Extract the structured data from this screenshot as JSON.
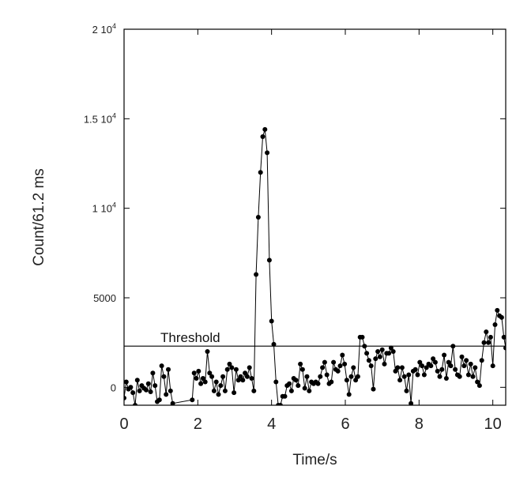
{
  "chart_data": {
    "type": "line",
    "title": "",
    "xlabel": "Time/s",
    "ylabel": "Count/61.2 ms",
    "xlim": [
      0,
      10.35
    ],
    "ylim": [
      -1000,
      20000
    ],
    "x_ticks": [
      {
        "value": 0,
        "label": "0"
      },
      {
        "value": 2,
        "label": "2"
      },
      {
        "value": 4,
        "label": "4"
      },
      {
        "value": 6,
        "label": "6"
      },
      {
        "value": 8,
        "label": "8"
      },
      {
        "value": 10,
        "label": "10"
      }
    ],
    "y_ticks": [
      {
        "value": 0,
        "mantissa": "0",
        "exponent": ""
      },
      {
        "value": 5000,
        "mantissa": "5000",
        "exponent": ""
      },
      {
        "value": 10000,
        "mantissa": "1 10",
        "exponent": "4"
      },
      {
        "value": 15000,
        "mantissa": "1.5 10",
        "exponent": "4"
      },
      {
        "value": 20000,
        "mantissa": "2 10",
        "exponent": "4"
      }
    ],
    "threshold": {
      "value": 2300,
      "label": "Threshold"
    },
    "grid": false,
    "legend": "none",
    "series": [
      {
        "color": "#000000",
        "marker": "circle",
        "points": [
          [
            0.0,
            -600
          ],
          [
            0.06,
            300
          ],
          [
            0.12,
            -100
          ],
          [
            0.18,
            0
          ],
          [
            0.24,
            -300
          ],
          [
            0.3,
            -1000
          ],
          [
            0.36,
            400
          ],
          [
            0.42,
            -200
          ],
          [
            0.48,
            100
          ],
          [
            0.54,
            -50
          ],
          [
            0.6,
            -150
          ],
          [
            0.66,
            200
          ],
          [
            0.72,
            -250
          ],
          [
            0.78,
            800
          ],
          [
            0.84,
            100
          ],
          [
            0.9,
            -800
          ],
          [
            0.96,
            -700
          ],
          [
            1.02,
            1200
          ],
          [
            1.08,
            600
          ],
          [
            1.14,
            -400
          ],
          [
            1.2,
            1000
          ],
          [
            1.26,
            -200
          ],
          [
            1.32,
            -900
          ],
          [
            1.85,
            -700
          ],
          [
            1.9,
            800
          ],
          [
            1.96,
            500
          ],
          [
            2.02,
            900
          ],
          [
            2.08,
            200
          ],
          [
            2.14,
            500
          ],
          [
            2.2,
            300
          ],
          [
            2.26,
            2000
          ],
          [
            2.32,
            800
          ],
          [
            2.38,
            600
          ],
          [
            2.44,
            -200
          ],
          [
            2.5,
            300
          ],
          [
            2.56,
            -400
          ],
          [
            2.62,
            100
          ],
          [
            2.68,
            600
          ],
          [
            2.74,
            -200
          ],
          [
            2.8,
            1000
          ],
          [
            2.86,
            1300
          ],
          [
            2.92,
            1100
          ],
          [
            2.98,
            -300
          ],
          [
            3.04,
            1000
          ],
          [
            3.1,
            400
          ],
          [
            3.16,
            600
          ],
          [
            3.22,
            400
          ],
          [
            3.28,
            800
          ],
          [
            3.34,
            600
          ],
          [
            3.4,
            1100
          ],
          [
            3.46,
            500
          ],
          [
            3.52,
            -200
          ],
          [
            3.58,
            6300
          ],
          [
            3.64,
            9500
          ],
          [
            3.7,
            12000
          ],
          [
            3.76,
            14000
          ],
          [
            3.82,
            14400
          ],
          [
            3.88,
            13100
          ],
          [
            3.94,
            7100
          ],
          [
            4.0,
            3700
          ],
          [
            4.06,
            2400
          ],
          [
            4.12,
            300
          ],
          [
            4.18,
            -1000
          ],
          [
            4.24,
            -1000
          ],
          [
            4.3,
            -500
          ],
          [
            4.36,
            -500
          ],
          [
            4.42,
            100
          ],
          [
            4.48,
            200
          ],
          [
            4.54,
            -200
          ],
          [
            4.6,
            500
          ],
          [
            4.66,
            400
          ],
          [
            4.72,
            100
          ],
          [
            4.78,
            1300
          ],
          [
            4.84,
            1000
          ],
          [
            4.9,
            -50
          ],
          [
            4.96,
            600
          ],
          [
            5.02,
            -200
          ],
          [
            5.08,
            300
          ],
          [
            5.14,
            200
          ],
          [
            5.2,
            300
          ],
          [
            5.26,
            200
          ],
          [
            5.32,
            600
          ],
          [
            5.38,
            1100
          ],
          [
            5.44,
            1400
          ],
          [
            5.5,
            700
          ],
          [
            5.56,
            200
          ],
          [
            5.62,
            300
          ],
          [
            5.68,
            1400
          ],
          [
            5.74,
            1000
          ],
          [
            5.8,
            900
          ],
          [
            5.86,
            1200
          ],
          [
            5.92,
            1800
          ],
          [
            5.98,
            1300
          ],
          [
            6.04,
            400
          ],
          [
            6.1,
            -400
          ],
          [
            6.16,
            600
          ],
          [
            6.22,
            1100
          ],
          [
            6.28,
            400
          ],
          [
            6.34,
            600
          ],
          [
            6.4,
            2800
          ],
          [
            6.46,
            2800
          ],
          [
            6.52,
            2300
          ],
          [
            6.58,
            1900
          ],
          [
            6.64,
            1500
          ],
          [
            6.7,
            1200
          ],
          [
            6.76,
            -100
          ],
          [
            6.82,
            1600
          ],
          [
            6.88,
            2000
          ],
          [
            6.94,
            1700
          ],
          [
            7.0,
            2100
          ],
          [
            7.06,
            1300
          ],
          [
            7.12,
            1900
          ],
          [
            7.18,
            1900
          ],
          [
            7.24,
            2200
          ],
          [
            7.3,
            2000
          ],
          [
            7.36,
            900
          ],
          [
            7.42,
            1100
          ],
          [
            7.48,
            400
          ],
          [
            7.54,
            1100
          ],
          [
            7.6,
            600
          ],
          [
            7.66,
            -200
          ],
          [
            7.72,
            700
          ],
          [
            7.78,
            -900
          ],
          [
            7.84,
            900
          ],
          [
            7.9,
            1000
          ],
          [
            7.96,
            700
          ],
          [
            8.02,
            1400
          ],
          [
            8.08,
            1200
          ],
          [
            8.14,
            700
          ],
          [
            8.2,
            1100
          ],
          [
            8.26,
            1300
          ],
          [
            8.32,
            1200
          ],
          [
            8.38,
            1600
          ],
          [
            8.44,
            1400
          ],
          [
            8.5,
            900
          ],
          [
            8.56,
            600
          ],
          [
            8.62,
            1000
          ],
          [
            8.68,
            1800
          ],
          [
            8.74,
            500
          ],
          [
            8.8,
            1400
          ],
          [
            8.86,
            1200
          ],
          [
            8.92,
            2300
          ],
          [
            8.98,
            1000
          ],
          [
            9.04,
            700
          ],
          [
            9.1,
            600
          ],
          [
            9.16,
            1700
          ],
          [
            9.22,
            1200
          ],
          [
            9.28,
            1500
          ],
          [
            9.34,
            700
          ],
          [
            9.4,
            1300
          ],
          [
            9.46,
            600
          ],
          [
            9.52,
            1100
          ],
          [
            9.58,
            300
          ],
          [
            9.64,
            100
          ],
          [
            9.7,
            1500
          ],
          [
            9.76,
            2500
          ],
          [
            9.82,
            3100
          ],
          [
            9.88,
            2500
          ],
          [
            9.94,
            2800
          ],
          [
            10.0,
            1200
          ],
          [
            10.06,
            3500
          ],
          [
            10.12,
            4300
          ],
          [
            10.18,
            4000
          ],
          [
            10.24,
            3900
          ],
          [
            10.3,
            2800
          ],
          [
            10.35,
            2200
          ]
        ]
      }
    ]
  }
}
